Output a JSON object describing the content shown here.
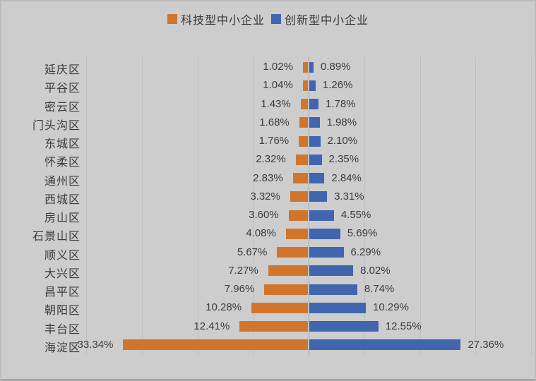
{
  "window": {
    "background": "#cdcdcd"
  },
  "legend": {
    "position": "top-center"
  },
  "chart_data": {
    "type": "bar",
    "orientation": "horizontal-diverging",
    "title": "",
    "xlabel": "",
    "ylabel": "",
    "grid": "on",
    "legend_position": "top-center",
    "xlim": [
      -40,
      40
    ],
    "grid_step": 10,
    "value_labels": {
      "format": "percent",
      "decimals": 2,
      "suffix": "%"
    },
    "categories": [
      "延庆区",
      "平谷区",
      "密云区",
      "门头沟区",
      "东城区",
      "怀柔区",
      "通州区",
      "西城区",
      "房山区",
      "石景山区",
      "顺义区",
      "大兴区",
      "昌平区",
      "朝阳区",
      "丰台区",
      "海淀区"
    ],
    "series": [
      {
        "name": "科技型中小企业",
        "side": "left",
        "color": "#d2752c",
        "values": [
          1.02,
          1.04,
          1.43,
          1.68,
          1.76,
          2.32,
          2.83,
          3.32,
          3.6,
          4.08,
          5.67,
          7.27,
          7.96,
          10.28,
          12.41,
          33.34
        ]
      },
      {
        "name": "创新型中小企业",
        "side": "right",
        "color": "#4165ae",
        "values": [
          0.89,
          1.26,
          1.78,
          1.98,
          2.1,
          2.35,
          2.84,
          3.31,
          4.55,
          5.69,
          6.29,
          8.02,
          8.74,
          10.29,
          12.55,
          27.36
        ]
      }
    ]
  },
  "styles": {
    "background": "#cdcdcd",
    "gridline_color": "#c0c0c0",
    "axis_line_color": "#a9a9a9",
    "text_color": "#3c3c3c",
    "orange": "#d2752c",
    "blue": "#4165ae"
  }
}
